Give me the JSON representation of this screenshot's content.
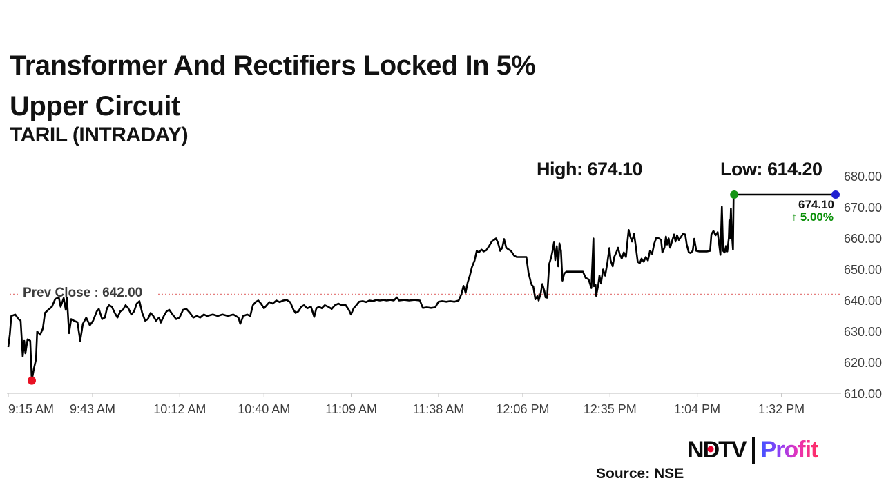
{
  "header": {
    "title_line1": "Transformer And Rectifiers Locked In 5%",
    "title_line2": "Upper Circuit",
    "subtitle": "TARIL (INTRADAY)"
  },
  "stats": {
    "high_label": "High: 674.10",
    "low_label": "Low: 614.20"
  },
  "prev_close_label": "Prev Close : 642.00",
  "annotation": {
    "price": "674.10",
    "change": "↑ 5.00%"
  },
  "footer": {
    "source": "Source: NSE",
    "logo_ndtv_parts": [
      "N",
      "D",
      "TV"
    ],
    "logo_profit": "Profit"
  },
  "colors": {
    "line": "#000000",
    "prev_close_line": "#e57e7e",
    "axis_line": "#c9c9c9",
    "axis_text": "#3d3d3d",
    "title_text": "#121212",
    "low_marker": "#e81123",
    "high_marker": "#149414",
    "last_marker": "#2020d0",
    "change_text": "#0a9008",
    "ndtv_red": "#e4002b"
  },
  "chart_data": {
    "type": "line",
    "title": "TARIL (INTRADAY)",
    "high": 674.1,
    "low": 614.2,
    "last": 674.1,
    "change_pct": 5.0,
    "prev_close": 642.0,
    "ylim": [
      610,
      680
    ],
    "y_ticks": [
      680,
      670,
      660,
      650,
      640,
      630,
      620,
      610
    ],
    "y_tick_labels": [
      "680.00",
      "670.00",
      "660.00",
      "650.00",
      "640.00",
      "630.00",
      "620.00",
      "610.00"
    ],
    "x_unit": "minutes since 9:15 AM",
    "x_max": 275,
    "x_tick_minutes": [
      0,
      28,
      57,
      85,
      114,
      143,
      171,
      200,
      229,
      257
    ],
    "x_tick_labels": [
      "9:15 AM",
      "9:43 AM",
      "10:12 AM",
      "10:40 AM",
      "11:09 AM",
      "11:38 AM",
      "12:06 PM",
      "12:35 PM",
      "1:04 PM",
      "1:32 PM"
    ],
    "markers": [
      {
        "name": "day-low",
        "m": 7.8,
        "value": 614.2,
        "color_key": "low_marker"
      },
      {
        "name": "upper-circuit-lock",
        "m": 241.3,
        "value": 674.1,
        "color_key": "high_marker"
      },
      {
        "name": "last-trade",
        "m": 275,
        "value": 674.1,
        "color_key": "last_marker"
      }
    ],
    "series": [
      {
        "name": "TARIL price",
        "points": [
          [
            0,
            625
          ],
          [
            0.5,
            629
          ],
          [
            1,
            635
          ],
          [
            2.3,
            635.5
          ],
          [
            3.4,
            634
          ],
          [
            4.1,
            633.5
          ],
          [
            4.8,
            622
          ],
          [
            5.3,
            627
          ],
          [
            5.7,
            623
          ],
          [
            6.4,
            627.5
          ],
          [
            7.3,
            627
          ],
          [
            7.6,
            620
          ],
          [
            7.8,
            614.2
          ],
          [
            8.5,
            618
          ],
          [
            9.2,
            621
          ],
          [
            9.6,
            630
          ],
          [
            10.6,
            629
          ],
          [
            11.5,
            631
          ],
          [
            12.2,
            636
          ],
          [
            13.3,
            637
          ],
          [
            14.5,
            638
          ],
          [
            15.6,
            640.5
          ],
          [
            16.8,
            641
          ],
          [
            17.4,
            638
          ],
          [
            18.4,
            640.8
          ],
          [
            19.1,
            637
          ],
          [
            19.5,
            641
          ],
          [
            20.2,
            629.5
          ],
          [
            20.9,
            634
          ],
          [
            21.8,
            633.5
          ],
          [
            23,
            633
          ],
          [
            23.9,
            627
          ],
          [
            24.8,
            632.5
          ],
          [
            25.9,
            634.5
          ],
          [
            27.1,
            632
          ],
          [
            28.2,
            633.5
          ],
          [
            29.4,
            636.5
          ],
          [
            30.1,
            637.3
          ],
          [
            31.2,
            634
          ],
          [
            32.1,
            634.5
          ],
          [
            32.8,
            637.5
          ],
          [
            33.5,
            638.5
          ],
          [
            34.4,
            638
          ],
          [
            35.4,
            636
          ],
          [
            36.3,
            634.5
          ],
          [
            37.2,
            636.5
          ],
          [
            38.1,
            637
          ],
          [
            39,
            638.5
          ],
          [
            39.9,
            637.5
          ],
          [
            40.9,
            635.5
          ],
          [
            41.8,
            636.5
          ],
          [
            42.7,
            639
          ],
          [
            43.6,
            639.8
          ],
          [
            44.5,
            636
          ],
          [
            45.5,
            633.5
          ],
          [
            46.4,
            634
          ],
          [
            47.3,
            636
          ],
          [
            48.2,
            635
          ],
          [
            49.1,
            633.5
          ],
          [
            50.1,
            634.5
          ],
          [
            50.7,
            632.9
          ],
          [
            51.7,
            635
          ],
          [
            52.6,
            636.5
          ],
          [
            53.5,
            637
          ],
          [
            54.6,
            635.5
          ],
          [
            55.8,
            634
          ],
          [
            56.9,
            634.5
          ],
          [
            58.1,
            637
          ],
          [
            59.2,
            637.3
          ],
          [
            60.4,
            636
          ],
          [
            61.5,
            634.5
          ],
          [
            62.7,
            635
          ],
          [
            63.8,
            634.5
          ],
          [
            65,
            635.5
          ],
          [
            66.1,
            635
          ],
          [
            68,
            635.5
          ],
          [
            69.6,
            635
          ],
          [
            71.2,
            635.5
          ],
          [
            73,
            635
          ],
          [
            74.8,
            635.5
          ],
          [
            76.5,
            634.5
          ],
          [
            77.1,
            632.5
          ],
          [
            78.1,
            635
          ],
          [
            79.4,
            635.5
          ],
          [
            80.4,
            635
          ],
          [
            81.3,
            638.5
          ],
          [
            82.2,
            639.5
          ],
          [
            83.1,
            640
          ],
          [
            84,
            639
          ],
          [
            85,
            637.5
          ],
          [
            85.9,
            638.5
          ],
          [
            86.8,
            639.5
          ],
          [
            87.9,
            639
          ],
          [
            89.1,
            640
          ],
          [
            90.2,
            639.5
          ],
          [
            91.4,
            640
          ],
          [
            92.5,
            640.2
          ],
          [
            93.7,
            639.5
          ],
          [
            94.8,
            637
          ],
          [
            95.5,
            636
          ],
          [
            96.4,
            636.5
          ],
          [
            97.4,
            638
          ],
          [
            98.3,
            638.5
          ],
          [
            99.4,
            637.5
          ],
          [
            100.6,
            638
          ],
          [
            101.7,
            634.7
          ],
          [
            102.4,
            637.5
          ],
          [
            103.3,
            638
          ],
          [
            104.2,
            637.5
          ],
          [
            105.2,
            638.5
          ],
          [
            106.3,
            638
          ],
          [
            107.5,
            637.3
          ],
          [
            108.6,
            638.5
          ],
          [
            109.7,
            639
          ],
          [
            110.9,
            638.5
          ],
          [
            112,
            638.7
          ],
          [
            113.2,
            637
          ],
          [
            113.9,
            635.5
          ],
          [
            114.8,
            637.5
          ],
          [
            115.7,
            638.5
          ],
          [
            116.6,
            639.6
          ],
          [
            117.8,
            639.8
          ],
          [
            118.9,
            639.5
          ],
          [
            120.1,
            640
          ],
          [
            121.2,
            639.8
          ],
          [
            122.4,
            640.2
          ],
          [
            123.5,
            640
          ],
          [
            124.7,
            640.2
          ],
          [
            125.8,
            640
          ],
          [
            127,
            640.2
          ],
          [
            128.1,
            640
          ],
          [
            129.2,
            641
          ],
          [
            129.9,
            640
          ],
          [
            131.6,
            640.2
          ],
          [
            133.2,
            640
          ],
          [
            135,
            640.2
          ],
          [
            136.8,
            640
          ],
          [
            137.8,
            637.6
          ],
          [
            139.1,
            637.8
          ],
          [
            140.5,
            637.6
          ],
          [
            141.9,
            637.8
          ],
          [
            143,
            639.6
          ],
          [
            144.2,
            639.8
          ],
          [
            145.6,
            639.6
          ],
          [
            146.9,
            639.8
          ],
          [
            148.3,
            639.6
          ],
          [
            149.7,
            640
          ],
          [
            150.6,
            642
          ],
          [
            151.3,
            644.7
          ],
          [
            152,
            642.5
          ],
          [
            152.7,
            645.8
          ],
          [
            153.4,
            648
          ],
          [
            154.1,
            650.7
          ],
          [
            155,
            652.9
          ],
          [
            155.7,
            656
          ],
          [
            156.4,
            655.5
          ],
          [
            157.3,
            656.4
          ],
          [
            158,
            655.8
          ],
          [
            158.9,
            656.2
          ],
          [
            159.8,
            657.5
          ],
          [
            160.7,
            659
          ],
          [
            161.6,
            659.6
          ],
          [
            162.1,
            660
          ],
          [
            162.8,
            658.5
          ],
          [
            163.5,
            656
          ],
          [
            164.2,
            657
          ],
          [
            164.8,
            659.8
          ],
          [
            165.5,
            657
          ],
          [
            166.2,
            656.5
          ],
          [
            167.1,
            656
          ],
          [
            168.1,
            654.5
          ],
          [
            169,
            654
          ],
          [
            170.6,
            654
          ],
          [
            172.2,
            654
          ],
          [
            172.9,
            649
          ],
          [
            173.6,
            646.2
          ],
          [
            174,
            645
          ],
          [
            174.5,
            644.5
          ],
          [
            175.2,
            640.4
          ],
          [
            175.9,
            641.5
          ],
          [
            176.3,
            640
          ],
          [
            177,
            642.5
          ],
          [
            177.5,
            645.3
          ],
          [
            178.2,
            643
          ],
          [
            178.6,
            641
          ],
          [
            179.1,
            640.9
          ],
          [
            179.8,
            651.8
          ],
          [
            180.5,
            654
          ],
          [
            180.9,
            656
          ],
          [
            181.4,
            658.7
          ],
          [
            181.8,
            653
          ],
          [
            182.3,
            657.5
          ],
          [
            182.8,
            651
          ],
          [
            183.2,
            658.4
          ],
          [
            183.7,
            656
          ],
          [
            184.2,
            646.4
          ],
          [
            184.8,
            648.7
          ],
          [
            185.5,
            649.3
          ],
          [
            187.4,
            649.3
          ],
          [
            189.2,
            649.3
          ],
          [
            191,
            649.3
          ],
          [
            191.9,
            647.3
          ],
          [
            192.9,
            646.8
          ],
          [
            193.8,
            644
          ],
          [
            194.5,
            660
          ],
          [
            194.7,
            644.6
          ],
          [
            195.2,
            645
          ],
          [
            195.4,
            641.5
          ],
          [
            196.1,
            645
          ],
          [
            196.5,
            648
          ],
          [
            197,
            645.5
          ],
          [
            197.7,
            650
          ],
          [
            198.4,
            648
          ],
          [
            199.1,
            652
          ],
          [
            199.8,
            656.9
          ],
          [
            200.2,
            653
          ],
          [
            200.9,
            651
          ],
          [
            201.4,
            654
          ],
          [
            202.1,
            655.5
          ],
          [
            202.7,
            657
          ],
          [
            203.2,
            655
          ],
          [
            203.9,
            653.5
          ],
          [
            204.6,
            655.5
          ],
          [
            205.3,
            654
          ],
          [
            205.7,
            658
          ],
          [
            206.2,
            662.7
          ],
          [
            206.6,
            661
          ],
          [
            207.3,
            659
          ],
          [
            208,
            661.5
          ],
          [
            208.5,
            658
          ],
          [
            209.2,
            652.5
          ],
          [
            209.9,
            652
          ],
          [
            210.5,
            653.5
          ],
          [
            211.2,
            652.5
          ],
          [
            211.9,
            654
          ],
          [
            212.6,
            652.9
          ],
          [
            213.3,
            656
          ],
          [
            214,
            655
          ],
          [
            214.7,
            658.3
          ],
          [
            215.4,
            660.2
          ],
          [
            216.3,
            660
          ],
          [
            217,
            659.5
          ],
          [
            217.4,
            655.5
          ],
          [
            218.1,
            657
          ],
          [
            218.6,
            660.6
          ],
          [
            219,
            658
          ],
          [
            219.5,
            660
          ],
          [
            220,
            657
          ],
          [
            220.6,
            659
          ],
          [
            221.3,
            661.3
          ],
          [
            221.8,
            659
          ],
          [
            222.3,
            661
          ],
          [
            222.9,
            659.5
          ],
          [
            223.6,
            660.5
          ],
          [
            224.3,
            661.5
          ],
          [
            225,
            661.3
          ],
          [
            225.5,
            658
          ],
          [
            226.2,
            655.5
          ],
          [
            226.8,
            655.3
          ],
          [
            227.5,
            656
          ],
          [
            228,
            659.9
          ],
          [
            228.7,
            656
          ],
          [
            229.6,
            655.8
          ],
          [
            230.5,
            655.8
          ],
          [
            231.4,
            655.8
          ],
          [
            232.3,
            655.8
          ],
          [
            233.3,
            656
          ],
          [
            233.7,
            661.3
          ],
          [
            234.4,
            662.4
          ],
          [
            235.1,
            661
          ],
          [
            235.8,
            662
          ],
          [
            236.3,
            658
          ],
          [
            236.7,
            654.7
          ],
          [
            237.2,
            670.2
          ],
          [
            237.6,
            656
          ],
          [
            238.1,
            655.5
          ],
          [
            238.6,
            657.6
          ],
          [
            239,
            655.8
          ],
          [
            239.5,
            660
          ],
          [
            239.7,
            665.8
          ],
          [
            239.9,
            660
          ],
          [
            240.2,
            669.6
          ],
          [
            240.4,
            663
          ],
          [
            240.9,
            656.4
          ],
          [
            241.1,
            674.1
          ],
          [
            275,
            674.1
          ]
        ]
      }
    ]
  }
}
